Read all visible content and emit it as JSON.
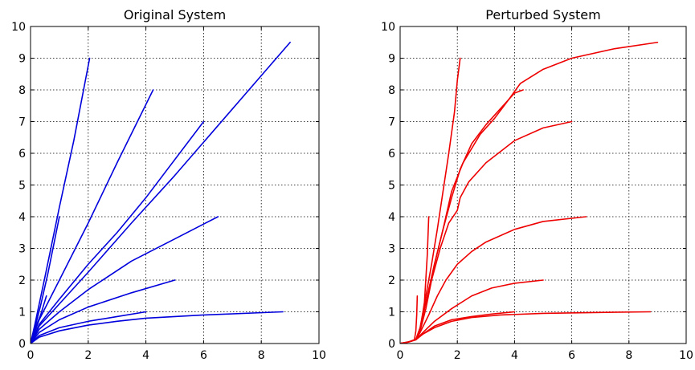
{
  "chart_data": [
    {
      "type": "line",
      "title": "Original System",
      "xlabel": "",
      "ylabel": "",
      "xlim": [
        0,
        10
      ],
      "ylim": [
        0,
        10
      ],
      "xticks": [
        "0",
        "2",
        "4",
        "6",
        "8",
        "10"
      ],
      "yticks": [
        "0",
        "1",
        "2",
        "3",
        "4",
        "5",
        "6",
        "7",
        "8",
        "9",
        "10"
      ],
      "grid": true,
      "color": "#0000dd",
      "series": [
        {
          "values": [
            [
              0,
              0
            ],
            [
              0.15,
              0.45
            ],
            [
              0.35,
              0.9
            ],
            [
              0.55,
              1.5
            ]
          ]
        },
        {
          "values": [
            [
              0,
              0
            ],
            [
              0.15,
              0.5
            ],
            [
              0.35,
              1.2
            ],
            [
              0.6,
              2.2
            ],
            [
              0.8,
              3.1
            ],
            [
              1.0,
              4.0
            ]
          ]
        },
        {
          "values": [
            [
              0,
              0
            ],
            [
              0.15,
              0.6
            ],
            [
              0.5,
              2.1
            ],
            [
              1.0,
              4.3
            ],
            [
              1.5,
              6.4
            ],
            [
              2.05,
              9.0
            ]
          ]
        },
        {
          "values": [
            [
              0,
              0
            ],
            [
              0.3,
              0.75
            ],
            [
              1.0,
              2.0
            ],
            [
              2.0,
              3.8
            ],
            [
              3.0,
              5.7
            ],
            [
              4.25,
              8.0
            ]
          ]
        },
        {
          "values": [
            [
              0,
              0
            ],
            [
              0.3,
              0.6
            ],
            [
              1.0,
              1.4
            ],
            [
              2.0,
              2.5
            ],
            [
              3.0,
              3.5
            ],
            [
              4.0,
              4.6
            ],
            [
              6.0,
              7.0
            ]
          ]
        },
        {
          "values": [
            [
              0,
              0
            ],
            [
              0.3,
              0.55
            ],
            [
              1.0,
              1.25
            ],
            [
              2.0,
              2.25
            ],
            [
              3.5,
              3.8
            ],
            [
              5.0,
              5.3
            ],
            [
              7.0,
              7.4
            ],
            [
              9.0,
              9.5
            ]
          ]
        },
        {
          "values": [
            [
              0,
              0
            ],
            [
              0.3,
              0.45
            ],
            [
              1.0,
              1.0
            ],
            [
              2.0,
              1.7
            ],
            [
              3.5,
              2.6
            ],
            [
              5.0,
              3.3
            ],
            [
              6.5,
              4.0
            ]
          ]
        },
        {
          "values": [
            [
              0,
              0
            ],
            [
              0.3,
              0.35
            ],
            [
              1.0,
              0.75
            ],
            [
              2.0,
              1.15
            ],
            [
              3.5,
              1.6
            ],
            [
              5.0,
              2.0
            ]
          ]
        },
        {
          "values": [
            [
              0,
              0
            ],
            [
              0.3,
              0.25
            ],
            [
              1.0,
              0.5
            ],
            [
              2.0,
              0.7
            ],
            [
              3.0,
              0.85
            ],
            [
              4.0,
              1.0
            ]
          ]
        },
        {
          "values": [
            [
              0,
              0
            ],
            [
              0.3,
              0.2
            ],
            [
              1.0,
              0.4
            ],
            [
              2.0,
              0.58
            ],
            [
              3.0,
              0.7
            ],
            [
              4.0,
              0.8
            ],
            [
              6.0,
              0.9
            ],
            [
              8.75,
              1.0
            ]
          ]
        }
      ]
    },
    {
      "type": "line",
      "title": "Perturbed System",
      "xlabel": "",
      "ylabel": "",
      "xlim": [
        0,
        10
      ],
      "ylim": [
        0,
        10
      ],
      "xticks": [
        "0",
        "2",
        "4",
        "6",
        "8",
        "10"
      ],
      "yticks": [
        "0",
        "1",
        "2",
        "3",
        "4",
        "5",
        "6",
        "7",
        "8",
        "9",
        "10"
      ],
      "grid": true,
      "color": "#ee0000",
      "series": [
        {
          "values": [
            [
              0,
              0
            ],
            [
              0.3,
              0.05
            ],
            [
              0.5,
              0.12
            ],
            [
              0.55,
              0.4
            ],
            [
              0.58,
              0.9
            ],
            [
              0.6,
              1.5
            ]
          ]
        },
        {
          "values": [
            [
              0,
              0
            ],
            [
              0.3,
              0.05
            ],
            [
              0.55,
              0.12
            ],
            [
              0.7,
              0.4
            ],
            [
              0.85,
              1.3
            ],
            [
              0.95,
              2.8
            ],
            [
              1.0,
              4.0
            ]
          ]
        },
        {
          "values": [
            [
              0,
              0
            ],
            [
              0.3,
              0.05
            ],
            [
              0.55,
              0.12
            ],
            [
              0.7,
              0.5
            ],
            [
              0.9,
              1.5
            ],
            [
              1.1,
              2.5
            ],
            [
              1.3,
              3.6
            ],
            [
              1.5,
              4.8
            ],
            [
              1.7,
              6.0
            ],
            [
              1.9,
              7.3
            ],
            [
              2.0,
              8.3
            ],
            [
              2.1,
              9.0
            ]
          ]
        },
        {
          "values": [
            [
              0,
              0
            ],
            [
              0.3,
              0.05
            ],
            [
              0.55,
              0.12
            ],
            [
              0.7,
              0.5
            ],
            [
              0.95,
              1.5
            ],
            [
              1.2,
              2.5
            ],
            [
              1.5,
              3.6
            ],
            [
              1.8,
              4.6
            ],
            [
              2.1,
              5.5
            ],
            [
              2.5,
              6.3
            ],
            [
              3.0,
              6.9
            ],
            [
              3.5,
              7.4
            ],
            [
              4.0,
              7.9
            ],
            [
              4.3,
              8.0
            ]
          ]
        },
        {
          "values": [
            [
              0,
              0
            ],
            [
              0.3,
              0.05
            ],
            [
              0.55,
              0.12
            ],
            [
              0.7,
              0.5
            ],
            [
              0.95,
              1.5
            ],
            [
              1.2,
              2.5
            ],
            [
              1.5,
              3.6
            ],
            [
              1.8,
              4.8
            ],
            [
              2.2,
              5.7
            ],
            [
              2.8,
              6.6
            ],
            [
              3.3,
              7.1
            ],
            [
              3.8,
              7.7
            ],
            [
              4.2,
              8.2
            ],
            [
              5.0,
              8.65
            ],
            [
              6.0,
              9.0
            ],
            [
              7.5,
              9.3
            ],
            [
              9.0,
              9.5
            ]
          ]
        },
        {
          "values": [
            [
              0,
              0
            ],
            [
              0.3,
              0.05
            ],
            [
              0.55,
              0.12
            ],
            [
              0.7,
              0.4
            ],
            [
              0.9,
              1.1
            ],
            [
              1.1,
              2.0
            ],
            [
              1.4,
              3.0
            ],
            [
              1.7,
              3.8
            ],
            [
              2.0,
              4.2
            ],
            [
              2.1,
              4.6
            ],
            [
              2.4,
              5.1
            ],
            [
              3.0,
              5.7
            ],
            [
              4.0,
              6.4
            ],
            [
              5.0,
              6.8
            ],
            [
              6.0,
              7.0
            ]
          ]
        },
        {
          "values": [
            [
              0,
              0
            ],
            [
              0.3,
              0.05
            ],
            [
              0.55,
              0.12
            ],
            [
              0.7,
              0.35
            ],
            [
              1.0,
              0.9
            ],
            [
              1.3,
              1.5
            ],
            [
              1.6,
              2.0
            ],
            [
              2.0,
              2.5
            ],
            [
              2.5,
              2.9
            ],
            [
              3.0,
              3.2
            ],
            [
              4.0,
              3.6
            ],
            [
              5.0,
              3.85
            ],
            [
              6.5,
              4.0
            ]
          ]
        },
        {
          "values": [
            [
              0,
              0
            ],
            [
              0.3,
              0.05
            ],
            [
              0.55,
              0.12
            ],
            [
              0.8,
              0.35
            ],
            [
              1.2,
              0.7
            ],
            [
              1.8,
              1.1
            ],
            [
              2.5,
              1.5
            ],
            [
              3.2,
              1.75
            ],
            [
              4.0,
              1.9
            ],
            [
              5.0,
              2.0
            ]
          ]
        },
        {
          "values": [
            [
              0,
              0
            ],
            [
              0.3,
              0.05
            ],
            [
              0.55,
              0.12
            ],
            [
              0.8,
              0.3
            ],
            [
              1.2,
              0.55
            ],
            [
              1.8,
              0.75
            ],
            [
              2.5,
              0.85
            ],
            [
              3.2,
              0.93
            ],
            [
              4.0,
              1.0
            ]
          ]
        },
        {
          "values": [
            [
              0,
              0
            ],
            [
              0.3,
              0.05
            ],
            [
              0.55,
              0.12
            ],
            [
              0.8,
              0.3
            ],
            [
              1.2,
              0.5
            ],
            [
              1.8,
              0.7
            ],
            [
              2.5,
              0.82
            ],
            [
              3.5,
              0.9
            ],
            [
              5.0,
              0.95
            ],
            [
              7.0,
              0.98
            ],
            [
              8.75,
              1.0
            ]
          ]
        }
      ]
    }
  ]
}
